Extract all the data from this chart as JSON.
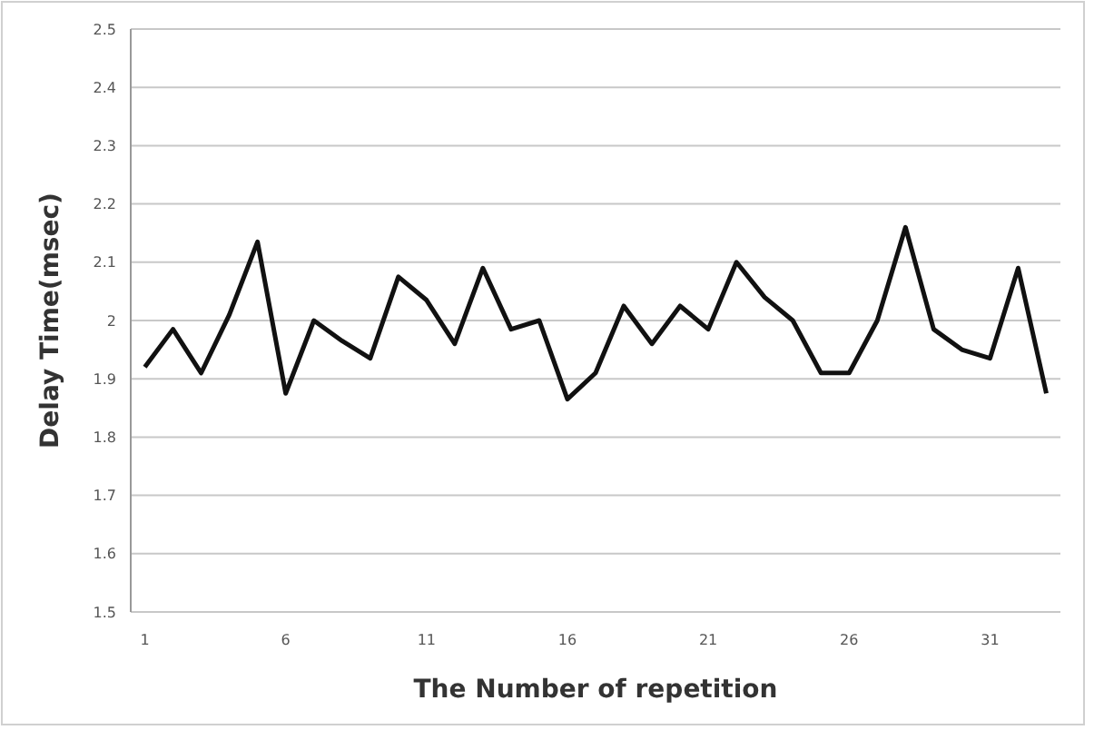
{
  "chart_data": {
    "type": "line",
    "xlabel": "The Number of repetition",
    "ylabel": "Delay Time(msec)",
    "categories": [
      "1",
      null,
      null,
      null,
      null,
      "6",
      null,
      null,
      null,
      null,
      "11",
      null,
      null,
      null,
      null,
      "16",
      null,
      null,
      null,
      null,
      "21",
      null,
      null,
      null,
      null,
      "26",
      null,
      null,
      null,
      null,
      "31",
      null,
      null
    ],
    "series": [
      {
        "color": "#111111",
        "values": [
          1.92,
          1.985,
          1.91,
          2.01,
          2.135,
          1.875,
          2.0,
          1.965,
          1.935,
          2.075,
          2.035,
          1.96,
          2.09,
          1.985,
          2.0,
          1.865,
          1.91,
          2.025,
          1.96,
          2.025,
          1.985,
          2.1,
          2.04,
          2.0,
          1.91,
          1.91,
          2.0,
          2.16,
          1.985,
          1.95,
          1.935,
          2.09,
          1.875
        ]
      }
    ],
    "ylim": [
      1.5,
      2.5
    ],
    "yticks": [
      1.5,
      1.6,
      1.7,
      1.8,
      1.9,
      2,
      2.1,
      2.2,
      2.3,
      2.4,
      2.5
    ],
    "grid": "y",
    "marker": "none",
    "line_style": "solid"
  }
}
